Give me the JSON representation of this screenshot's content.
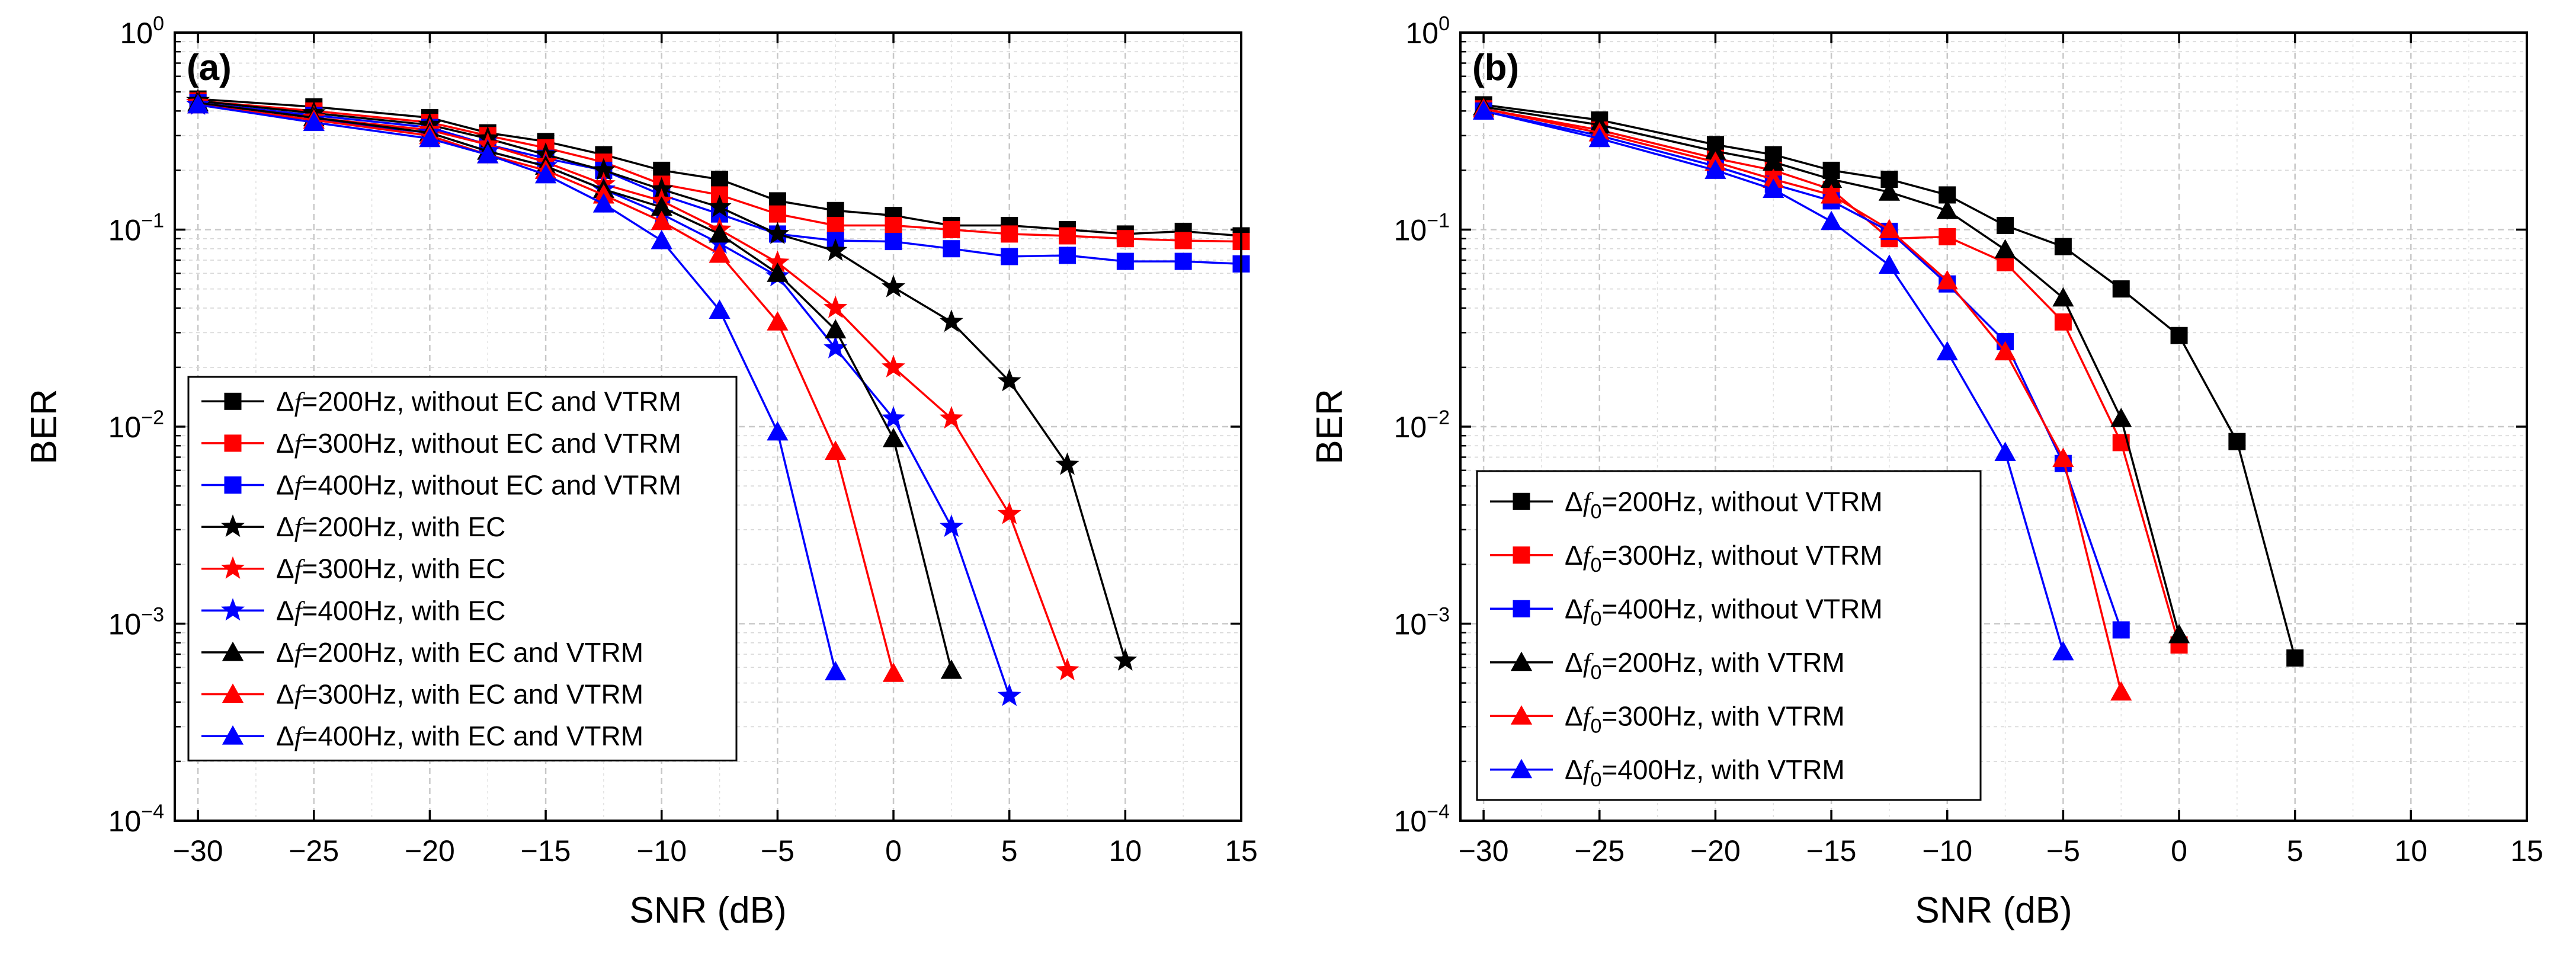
{
  "chart_data": [
    {
      "type": "line",
      "panel_label": "(a)",
      "xlabel": "SNR (dB)",
      "ylabel": "BER",
      "xlim": [
        -31,
        15
      ],
      "ylim": [
        0.0001,
        1
      ],
      "yscale": "log",
      "grid": true,
      "legend_position": "bottom-left",
      "x_ticks": [
        {
          "value": -30,
          "label": "−30"
        },
        {
          "value": -25,
          "label": "−25"
        },
        {
          "value": -20,
          "label": "−20"
        },
        {
          "value": -15,
          "label": "−15"
        },
        {
          "value": -10,
          "label": "−10"
        },
        {
          "value": -5,
          "label": "−5"
        },
        {
          "value": 0,
          "label": "0"
        },
        {
          "value": 5,
          "label": "5"
        },
        {
          "value": 10,
          "label": "10"
        },
        {
          "value": 15,
          "label": "15"
        }
      ],
      "y_ticks": [
        {
          "value": 0.0001,
          "base": "10",
          "exp": "-4"
        },
        {
          "value": 0.001,
          "base": "10",
          "exp": "-3"
        },
        {
          "value": 0.01,
          "base": "10",
          "exp": "-2"
        },
        {
          "value": 0.1,
          "base": "10",
          "exp": "-1"
        },
        {
          "value": 1,
          "base": "10",
          "exp": "0"
        }
      ],
      "series": [
        {
          "name_prefix": "Δ",
          "name_symbol": "f",
          "name_suffix": "=200Hz, without EC and VTRM",
          "color": "#000000",
          "marker": "square",
          "x": [
            -30,
            -25,
            -20,
            -17.5,
            -15,
            -12.5,
            -10,
            -7.5,
            -5,
            -2.5,
            0,
            2.5,
            5,
            7.5,
            10,
            12.5,
            15
          ],
          "y": [
            0.46,
            0.42,
            0.37,
            0.31,
            0.28,
            0.24,
            0.2,
            0.18,
            0.14,
            0.125,
            0.118,
            0.105,
            0.105,
            0.1,
            0.095,
            0.098,
            0.093
          ]
        },
        {
          "name_prefix": "Δ",
          "name_symbol": "f",
          "name_suffix": "=300Hz, without EC and VTRM",
          "color": "#ff0000",
          "marker": "square",
          "x": [
            -30,
            -25,
            -20,
            -17.5,
            -15,
            -12.5,
            -10,
            -7.5,
            -5,
            -2.5,
            0,
            2.5,
            5,
            7.5,
            10,
            12.5,
            15
          ],
          "y": [
            0.45,
            0.4,
            0.35,
            0.3,
            0.26,
            0.22,
            0.17,
            0.15,
            0.12,
            0.105,
            0.105,
            0.1,
            0.095,
            0.093,
            0.09,
            0.088,
            0.087
          ]
        },
        {
          "name_prefix": "Δ",
          "name_symbol": "f",
          "name_suffix": "=400Hz, without EC and VTRM",
          "color": "#0000ff",
          "marker": "square",
          "x": [
            -30,
            -25,
            -20,
            -17.5,
            -15,
            -12.5,
            -10,
            -7.5,
            -5,
            -2.5,
            0,
            2.5,
            5,
            7.5,
            10,
            12.5,
            15
          ],
          "y": [
            0.44,
            0.38,
            0.33,
            0.27,
            0.23,
            0.2,
            0.15,
            0.12,
            0.095,
            0.088,
            0.087,
            0.08,
            0.073,
            0.074,
            0.069,
            0.069,
            0.067
          ]
        },
        {
          "name_prefix": "Δ",
          "name_symbol": "f",
          "name_suffix": "=200Hz, with EC",
          "color": "#000000",
          "marker": "star",
          "x": [
            -30,
            -25,
            -20,
            -17.5,
            -15,
            -12.5,
            -10,
            -7.5,
            -5,
            -2.5,
            0,
            2.5,
            5,
            7.5,
            10
          ],
          "y": [
            0.45,
            0.39,
            0.34,
            0.29,
            0.24,
            0.2,
            0.16,
            0.13,
            0.095,
            0.078,
            0.051,
            0.034,
            0.017,
            0.0064,
            0.00065
          ]
        },
        {
          "name_prefix": "Δ",
          "name_symbol": "f",
          "name_suffix": "=300Hz, with EC",
          "color": "#ff0000",
          "marker": "star",
          "x": [
            -30,
            -25,
            -20,
            -17.5,
            -15,
            -12.5,
            -10,
            -7.5,
            -5,
            -2.5,
            0,
            2.5,
            5,
            7.5
          ],
          "y": [
            0.44,
            0.37,
            0.32,
            0.27,
            0.22,
            0.17,
            0.14,
            0.1,
            0.068,
            0.04,
            0.02,
            0.011,
            0.0036,
            0.00058
          ]
        },
        {
          "name_prefix": "Δ",
          "name_symbol": "f",
          "name_suffix": "=400Hz, with EC",
          "color": "#0000ff",
          "marker": "star",
          "x": [
            -30,
            -25,
            -20,
            -17.5,
            -15,
            -12.5,
            -10,
            -7.5,
            -5,
            -2.5,
            0,
            2.5,
            5
          ],
          "y": [
            0.43,
            0.36,
            0.31,
            0.25,
            0.21,
            0.16,
            0.12,
            0.085,
            0.058,
            0.025,
            0.011,
            0.0031,
            0.00043
          ]
        },
        {
          "name_prefix": "Δ",
          "name_symbol": "f",
          "name_suffix": "=200Hz, with EC and VTRM",
          "color": "#000000",
          "marker": "triangle",
          "x": [
            -30,
            -25,
            -20,
            -17.5,
            -15,
            -12.5,
            -10,
            -7.5,
            -5,
            -2.5,
            0,
            2.5
          ],
          "y": [
            0.44,
            0.37,
            0.31,
            0.25,
            0.21,
            0.16,
            0.13,
            0.095,
            0.06,
            0.031,
            0.0087,
            0.00058
          ]
        },
        {
          "name_prefix": "Δ",
          "name_symbol": "f",
          "name_suffix": "=300Hz, with EC and VTRM",
          "color": "#ff0000",
          "marker": "triangle",
          "x": [
            -30,
            -25,
            -20,
            -17.5,
            -15,
            -12.5,
            -10,
            -7.5,
            -5,
            -2.5,
            0
          ],
          "y": [
            0.43,
            0.36,
            0.3,
            0.24,
            0.2,
            0.15,
            0.11,
            0.075,
            0.034,
            0.0075,
            0.00056
          ]
        },
        {
          "name_prefix": "Δ",
          "name_symbol": "f",
          "name_suffix": "=400Hz, with EC and VTRM",
          "color": "#0000ff",
          "marker": "triangle",
          "x": [
            -30,
            -25,
            -20,
            -17.5,
            -15,
            -12.5,
            -10,
            -7.5,
            -5,
            -2.5
          ],
          "y": [
            0.43,
            0.35,
            0.29,
            0.24,
            0.19,
            0.135,
            0.088,
            0.039,
            0.0094,
            0.00057
          ]
        }
      ]
    },
    {
      "type": "line",
      "panel_label": "(b)",
      "xlabel": "SNR (dB)",
      "ylabel": "BER",
      "xlim": [
        -31,
        15
      ],
      "ylim": [
        0.0001,
        1
      ],
      "yscale": "log",
      "grid": true,
      "legend_position": "bottom-left",
      "x_ticks": [
        {
          "value": -30,
          "label": "−30"
        },
        {
          "value": -25,
          "label": "−25"
        },
        {
          "value": -20,
          "label": "−20"
        },
        {
          "value": -15,
          "label": "−15"
        },
        {
          "value": -10,
          "label": "−10"
        },
        {
          "value": -5,
          "label": "−5"
        },
        {
          "value": 0,
          "label": "0"
        },
        {
          "value": 5,
          "label": "5"
        },
        {
          "value": 10,
          "label": "10"
        },
        {
          "value": 15,
          "label": "15"
        }
      ],
      "y_ticks": [
        {
          "value": 0.0001,
          "base": "10",
          "exp": "-4"
        },
        {
          "value": 0.001,
          "base": "10",
          "exp": "-3"
        },
        {
          "value": 0.01,
          "base": "10",
          "exp": "-2"
        },
        {
          "value": 0.1,
          "base": "10",
          "exp": "-1"
        },
        {
          "value": 1,
          "base": "10",
          "exp": "0"
        }
      ],
      "series": [
        {
          "name_prefix": "Δ",
          "name_symbol": "f",
          "name_sub": "0",
          "name_suffix": "=200Hz, without VTRM",
          "color": "#000000",
          "marker": "square",
          "x": [
            -30,
            -25,
            -20,
            -17.5,
            -15,
            -12.5,
            -10,
            -7.5,
            -5,
            -2.5,
            0,
            2.5,
            5
          ],
          "y": [
            0.43,
            0.36,
            0.27,
            0.24,
            0.2,
            0.18,
            0.15,
            0.105,
            0.082,
            0.05,
            0.029,
            0.0084,
            0.00067
          ]
        },
        {
          "name_prefix": "Δ",
          "name_symbol": "f",
          "name_sub": "0",
          "name_suffix": "=300Hz, without VTRM",
          "color": "#ff0000",
          "marker": "square",
          "x": [
            -30,
            -25,
            -20,
            -17.5,
            -15,
            -12.5,
            -10,
            -7.5,
            -5,
            -2.5,
            0
          ],
          "y": [
            0.41,
            0.32,
            0.23,
            0.2,
            0.16,
            0.09,
            0.092,
            0.068,
            0.034,
            0.0083,
            0.00078
          ]
        },
        {
          "name_prefix": "Δ",
          "name_symbol": "f",
          "name_sub": "0",
          "name_suffix": "=400Hz, without VTRM",
          "color": "#0000ff",
          "marker": "square",
          "x": [
            -30,
            -25,
            -20,
            -17.5,
            -15,
            -12.5,
            -10,
            -7.5,
            -5,
            -2.5
          ],
          "y": [
            0.4,
            0.3,
            0.21,
            0.17,
            0.14,
            0.098,
            0.053,
            0.027,
            0.0065,
            0.00093
          ]
        },
        {
          "name_prefix": "Δ",
          "name_symbol": "f",
          "name_sub": "0",
          "name_suffix": "=200Hz, with VTRM",
          "color": "#000000",
          "marker": "triangle",
          "x": [
            -30,
            -25,
            -20,
            -17.5,
            -15,
            -12.5,
            -10,
            -7.5,
            -5,
            -2.5,
            0
          ],
          "y": [
            0.42,
            0.34,
            0.25,
            0.22,
            0.18,
            0.155,
            0.125,
            0.079,
            0.045,
            0.011,
            0.00088
          ]
        },
        {
          "name_prefix": "Δ",
          "name_symbol": "f",
          "name_sub": "0",
          "name_suffix": "=300Hz, with VTRM",
          "color": "#ff0000",
          "marker": "triangle",
          "x": [
            -30,
            -25,
            -20,
            -17.5,
            -15,
            -12.5,
            -10,
            -7.5,
            -5,
            -2.5
          ],
          "y": [
            0.41,
            0.31,
            0.22,
            0.18,
            0.15,
            0.1,
            0.055,
            0.024,
            0.0069,
            0.00045
          ]
        },
        {
          "name_prefix": "Δ",
          "name_symbol": "f",
          "name_sub": "0",
          "name_suffix": "=400Hz, with VTRM",
          "color": "#0000ff",
          "marker": "triangle",
          "x": [
            -30,
            -25,
            -20,
            -17.5,
            -15,
            -12.5,
            -10,
            -7.5,
            -5
          ],
          "y": [
            0.4,
            0.29,
            0.2,
            0.16,
            0.11,
            0.066,
            0.024,
            0.0074,
            0.00072
          ]
        }
      ]
    }
  ]
}
